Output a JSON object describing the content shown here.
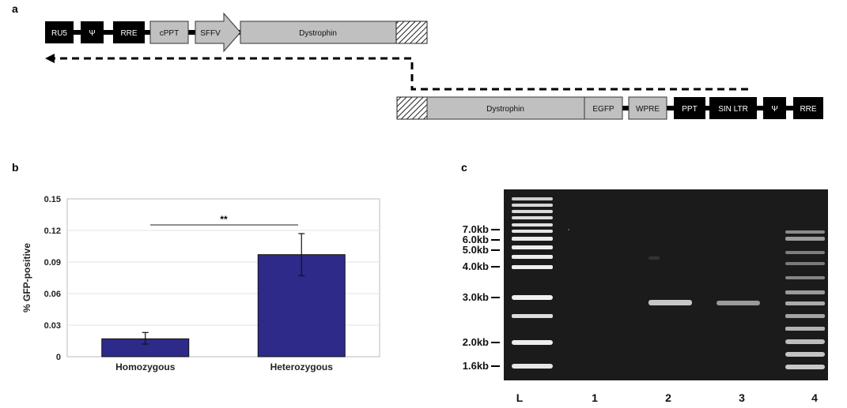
{
  "panels": {
    "a": "a",
    "b": "b",
    "c": "c"
  },
  "construct_top": {
    "elements": [
      {
        "label": "RU5",
        "style": "black"
      },
      {
        "label": "Ψ",
        "style": "black"
      },
      {
        "label": "RRE",
        "style": "black"
      },
      {
        "label": "cPPT",
        "style": "grey"
      },
      {
        "label": "SFFV",
        "style": "grey-arrow"
      },
      {
        "label": "Dystrophin",
        "style": "grey"
      },
      {
        "label": "",
        "style": "hatched"
      }
    ]
  },
  "construct_bottom": {
    "elements": [
      {
        "label": "",
        "style": "hatched"
      },
      {
        "label": "Dystrophin",
        "style": "grey"
      },
      {
        "label": "EGFP",
        "style": "grey"
      },
      {
        "label": "WPRE",
        "style": "grey"
      },
      {
        "label": "PPT",
        "style": "black"
      },
      {
        "label": "SIN LTR",
        "style": "black"
      },
      {
        "label": "Ψ",
        "style": "black"
      },
      {
        "label": "RRE",
        "style": "black"
      }
    ]
  },
  "chart_data": {
    "type": "bar",
    "title": "",
    "xlabel": "",
    "ylabel": "% GFP-positive",
    "ylim": [
      0,
      0.15
    ],
    "yticks": [
      "0",
      "0.03",
      "0.06",
      "0.09",
      "0.12",
      "0.15"
    ],
    "categories": [
      "Homozygous",
      "Heterozygous"
    ],
    "values": [
      0.017,
      0.097
    ],
    "error_low": [
      0.012,
      0.077
    ],
    "error_high": [
      0.023,
      0.117
    ],
    "significance": "**",
    "bar_color": "#2e2a8a",
    "grid": true
  },
  "gel": {
    "size_markers": [
      "7.0kb",
      "6.0kb",
      "5.0kb",
      "4.0kb",
      "3.0kb",
      "2.0kb",
      "1.6kb"
    ],
    "lanes": [
      "L",
      "1",
      "2",
      "3",
      "4"
    ]
  }
}
